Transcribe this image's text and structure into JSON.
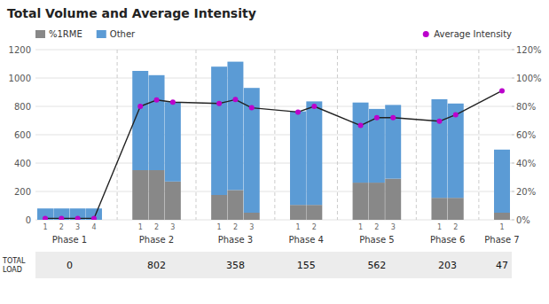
{
  "chart_data": {
    "type": "bar",
    "title": "Total Volume and Average Intensity",
    "stacked": true,
    "grid": true,
    "legend": "top",
    "categories": [
      "1",
      "2",
      "3",
      "4",
      "1",
      "2",
      "3",
      "1",
      "2",
      "3",
      "1",
      "2",
      "1",
      "2",
      "3",
      "1",
      "2",
      "1"
    ],
    "groups": [
      {
        "name": "Phase 1",
        "count": 4,
        "total_load": 0
      },
      {
        "name": "Phase 2",
        "count": 3,
        "total_load": 802
      },
      {
        "name": "Phase 3",
        "count": 3,
        "total_load": 358
      },
      {
        "name": "Phase 4",
        "count": 2,
        "total_load": 155
      },
      {
        "name": "Phase 5",
        "count": 3,
        "total_load": 562
      },
      {
        "name": "Phase 6",
        "count": 2,
        "total_load": 203
      },
      {
        "name": "Phase 7",
        "count": 1,
        "total_load": 47
      }
    ],
    "total_load_label": "TOTAL LOAD",
    "series": [
      {
        "name": "%1RME",
        "color": "#888888",
        "values": [
          0,
          0,
          0,
          0,
          350,
          350,
          270,
          175,
          210,
          50,
          105,
          105,
          262,
          262,
          290,
          155,
          155,
          50
        ]
      },
      {
        "name": "Other",
        "color": "#5B9BD5",
        "values": [
          80,
          80,
          80,
          80,
          700,
          670,
          560,
          905,
          905,
          880,
          660,
          730,
          565,
          520,
          520,
          695,
          665,
          445
        ]
      },
      {
        "name": "Average Intensity",
        "type": "line",
        "axis": "y2",
        "color": "#BB00CC",
        "marker": "circle",
        "values": [
          1,
          1,
          1,
          1,
          80,
          84.5,
          83,
          82,
          84.8,
          79,
          76,
          80,
          66.5,
          72,
          72,
          69.5,
          74,
          91
        ]
      }
    ],
    "ylim": [
      0,
      1200
    ],
    "yticks": [
      0,
      200,
      400,
      600,
      800,
      1000,
      1200
    ],
    "y2lim": [
      0,
      120
    ],
    "y2ticks": [
      {
        "value": 0,
        "label": "0%"
      },
      {
        "value": 20,
        "label": "20%"
      },
      {
        "value": 40,
        "label": "40%"
      },
      {
        "value": 60,
        "label": "60%"
      },
      {
        "value": 80,
        "label": "80%"
      },
      {
        "value": 100,
        "label": "100%"
      },
      {
        "value": 120,
        "label": "120%"
      }
    ]
  }
}
